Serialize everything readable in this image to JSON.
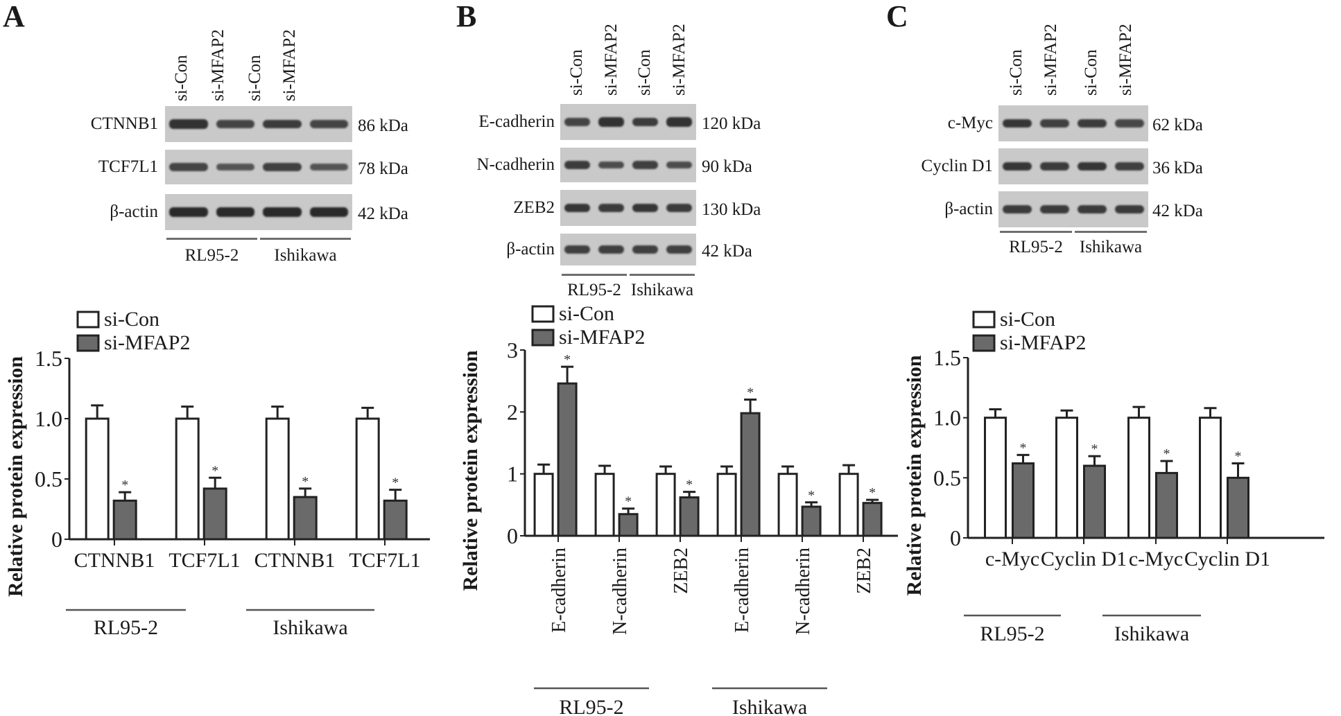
{
  "panels": [
    {
      "letter": "A",
      "lanes": [
        "si-Con",
        "si-MFAP2",
        "si-Con",
        "si-MFAP2"
      ],
      "blots": [
        {
          "protein": "CTNNB1",
          "kda": "86 kDa",
          "intensity": [
            0.9,
            0.7,
            0.8,
            0.7
          ]
        },
        {
          "protein": "TCF7L1",
          "kda": "78 kDa",
          "intensity": [
            0.7,
            0.5,
            0.75,
            0.5
          ]
        },
        {
          "protein": "β-actin",
          "kda": "42 kDa",
          "intensity": [
            1.0,
            1.0,
            1.0,
            1.0
          ]
        }
      ],
      "cell_lines": [
        "RL95-2",
        "Ishikawa"
      ]
    },
    {
      "letter": "B",
      "lanes": [
        "si-Con",
        "si-MFAP2",
        "si-Con",
        "si-MFAP2"
      ],
      "blots": [
        {
          "protein": "E-cadherin",
          "kda": "120 kDa",
          "intensity": [
            0.7,
            0.9,
            0.8,
            0.9
          ]
        },
        {
          "protein": "N-cadherin",
          "kda": "90 kDa",
          "intensity": [
            0.8,
            0.6,
            0.75,
            0.6
          ]
        },
        {
          "protein": "ZEB2",
          "kda": "130 kDa",
          "intensity": [
            0.85,
            0.8,
            0.85,
            0.8
          ]
        },
        {
          "protein": "β-actin",
          "kda": "42 kDa",
          "intensity": [
            0.75,
            0.75,
            0.75,
            0.75
          ]
        }
      ],
      "cell_lines": [
        "RL95-2",
        "Ishikawa"
      ]
    },
    {
      "letter": "C",
      "lanes": [
        "si-Con",
        "si-MFAP2",
        "si-Con",
        "si-MFAP2"
      ],
      "blots": [
        {
          "protein": "c-Myc",
          "kda": "62 kDa",
          "intensity": [
            0.85,
            0.75,
            0.8,
            0.65
          ]
        },
        {
          "protein": "Cyclin D1",
          "kda": "36 kDa",
          "intensity": [
            0.85,
            0.8,
            0.85,
            0.75
          ]
        },
        {
          "protein": "β-actin",
          "kda": "42 kDa",
          "intensity": [
            0.8,
            0.8,
            0.8,
            0.8
          ]
        }
      ],
      "cell_lines": [
        "RL95-2",
        "Ishikawa"
      ]
    }
  ],
  "chart_data": [
    {
      "type": "bar",
      "panel": "A",
      "ylabel": "Relative protein expression",
      "xlabel": "",
      "ylim": [
        0,
        1.5
      ],
      "yticks": [
        "0",
        "0.5",
        "1.0",
        "1.5"
      ],
      "ytick_values": [
        0,
        0.5,
        1.0,
        1.5
      ],
      "categories": [
        "CTNNB1",
        "TCF7L1",
        "CTNNB1",
        "TCF7L1"
      ],
      "groups": [
        "RL95-2",
        "Ishikawa"
      ],
      "legend": {
        "placement": "top-left",
        "entries": [
          "si-Con",
          "si-MFAP2"
        ]
      },
      "series": [
        {
          "name": "si-Con",
          "values": [
            1.0,
            1.0,
            1.0,
            1.0
          ],
          "errors": [
            0.11,
            0.1,
            0.1,
            0.09
          ],
          "color": "#ffffff"
        },
        {
          "name": "si-MFAP2",
          "values": [
            0.32,
            0.42,
            0.35,
            0.32
          ],
          "errors": [
            0.07,
            0.09,
            0.07,
            0.09
          ],
          "color": "#6a6a6a",
          "significance": [
            "*",
            "*",
            "*",
            "*"
          ]
        }
      ]
    },
    {
      "type": "bar",
      "panel": "B",
      "ylabel": "Relative protein expression",
      "xlabel": "",
      "ylim": [
        0,
        3
      ],
      "yticks": [
        "0",
        "1",
        "2",
        "3"
      ],
      "ytick_values": [
        0,
        1,
        2,
        3
      ],
      "categories": [
        "E-cadherin",
        "N-cadherin",
        "ZEB2",
        "E-cadherin",
        "N-cadherin",
        "ZEB2"
      ],
      "groups": [
        "RL95-2",
        "Ishikawa"
      ],
      "legend": {
        "placement": "top-left",
        "entries": [
          "si-Con",
          "si-MFAP2"
        ]
      },
      "series": [
        {
          "name": "si-Con",
          "values": [
            1.0,
            1.0,
            1.0,
            1.0,
            1.0,
            1.0
          ],
          "errors": [
            0.15,
            0.13,
            0.12,
            0.12,
            0.12,
            0.14
          ],
          "color": "#ffffff"
        },
        {
          "name": "si-MFAP2",
          "values": [
            2.46,
            0.35,
            0.62,
            1.98,
            0.47,
            0.53
          ],
          "errors": [
            0.27,
            0.09,
            0.09,
            0.22,
            0.07,
            0.05
          ],
          "color": "#6a6a6a",
          "significance": [
            "*",
            "*",
            "*",
            "*",
            "*",
            "*"
          ]
        }
      ]
    },
    {
      "type": "bar",
      "panel": "C",
      "ylabel": "Relative protein expression",
      "xlabel": "",
      "ylim": [
        0,
        1.5
      ],
      "yticks": [
        "0",
        "0.5",
        "1.0",
        "1.5"
      ],
      "ytick_values": [
        0,
        0.5,
        1.0,
        1.5
      ],
      "categories": [
        "c-Myc",
        "Cyclin D1",
        "c-Myc",
        "Cyclin D1"
      ],
      "groups": [
        "RL95-2",
        "Ishikawa"
      ],
      "legend": {
        "placement": "top-left",
        "entries": [
          "si-Con",
          "si-MFAP2"
        ]
      },
      "series": [
        {
          "name": "si-Con",
          "values": [
            1.0,
            1.0,
            1.0,
            1.0
          ],
          "errors": [
            0.07,
            0.06,
            0.09,
            0.08
          ],
          "color": "#ffffff"
        },
        {
          "name": "si-MFAP2",
          "values": [
            0.62,
            0.6,
            0.54,
            0.5
          ],
          "errors": [
            0.07,
            0.08,
            0.1,
            0.12
          ],
          "color": "#6a6a6a",
          "significance": [
            "*",
            "*",
            "*",
            "*"
          ]
        }
      ]
    }
  ]
}
